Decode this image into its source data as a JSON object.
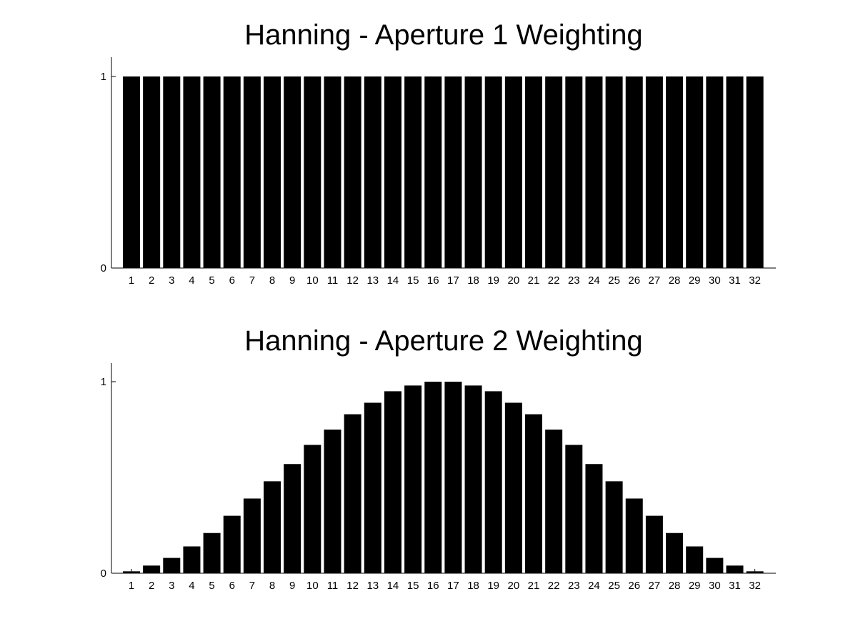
{
  "chart_data": [
    {
      "type": "bar",
      "title": "Hanning - Aperture 1 Weighting",
      "xlabel": "",
      "ylabel": "",
      "categories": [
        "1",
        "2",
        "3",
        "4",
        "5",
        "6",
        "7",
        "8",
        "9",
        "10",
        "11",
        "12",
        "13",
        "14",
        "15",
        "16",
        "17",
        "18",
        "19",
        "20",
        "21",
        "22",
        "23",
        "24",
        "25",
        "26",
        "27",
        "28",
        "29",
        "30",
        "31",
        "32"
      ],
      "values": [
        1,
        1,
        1,
        1,
        1,
        1,
        1,
        1,
        1,
        1,
        1,
        1,
        1,
        1,
        1,
        1,
        1,
        1,
        1,
        1,
        1,
        1,
        1,
        1,
        1,
        1,
        1,
        1,
        1,
        1,
        1,
        1
      ],
      "yticks": [
        "0",
        "1"
      ],
      "ylim": [
        0,
        1.1
      ],
      "grid": false,
      "color": "#000000"
    },
    {
      "type": "bar",
      "title": "Hanning - Aperture 2 Weighting",
      "xlabel": "",
      "ylabel": "",
      "categories": [
        "1",
        "2",
        "3",
        "4",
        "5",
        "6",
        "7",
        "8",
        "9",
        "10",
        "11",
        "12",
        "13",
        "14",
        "15",
        "16",
        "17",
        "18",
        "19",
        "20",
        "21",
        "22",
        "23",
        "24",
        "25",
        "26",
        "27",
        "28",
        "29",
        "30",
        "31",
        "32"
      ],
      "values": [
        0.01,
        0.04,
        0.08,
        0.14,
        0.21,
        0.3,
        0.39,
        0.48,
        0.57,
        0.67,
        0.75,
        0.83,
        0.89,
        0.95,
        0.98,
        1.0,
        1.0,
        0.98,
        0.95,
        0.89,
        0.83,
        0.75,
        0.67,
        0.57,
        0.48,
        0.39,
        0.3,
        0.21,
        0.14,
        0.08,
        0.04,
        0.01
      ],
      "yticks": [
        "0",
        "1"
      ],
      "ylim": [
        0,
        1.1
      ],
      "grid": false,
      "color": "#000000"
    }
  ]
}
